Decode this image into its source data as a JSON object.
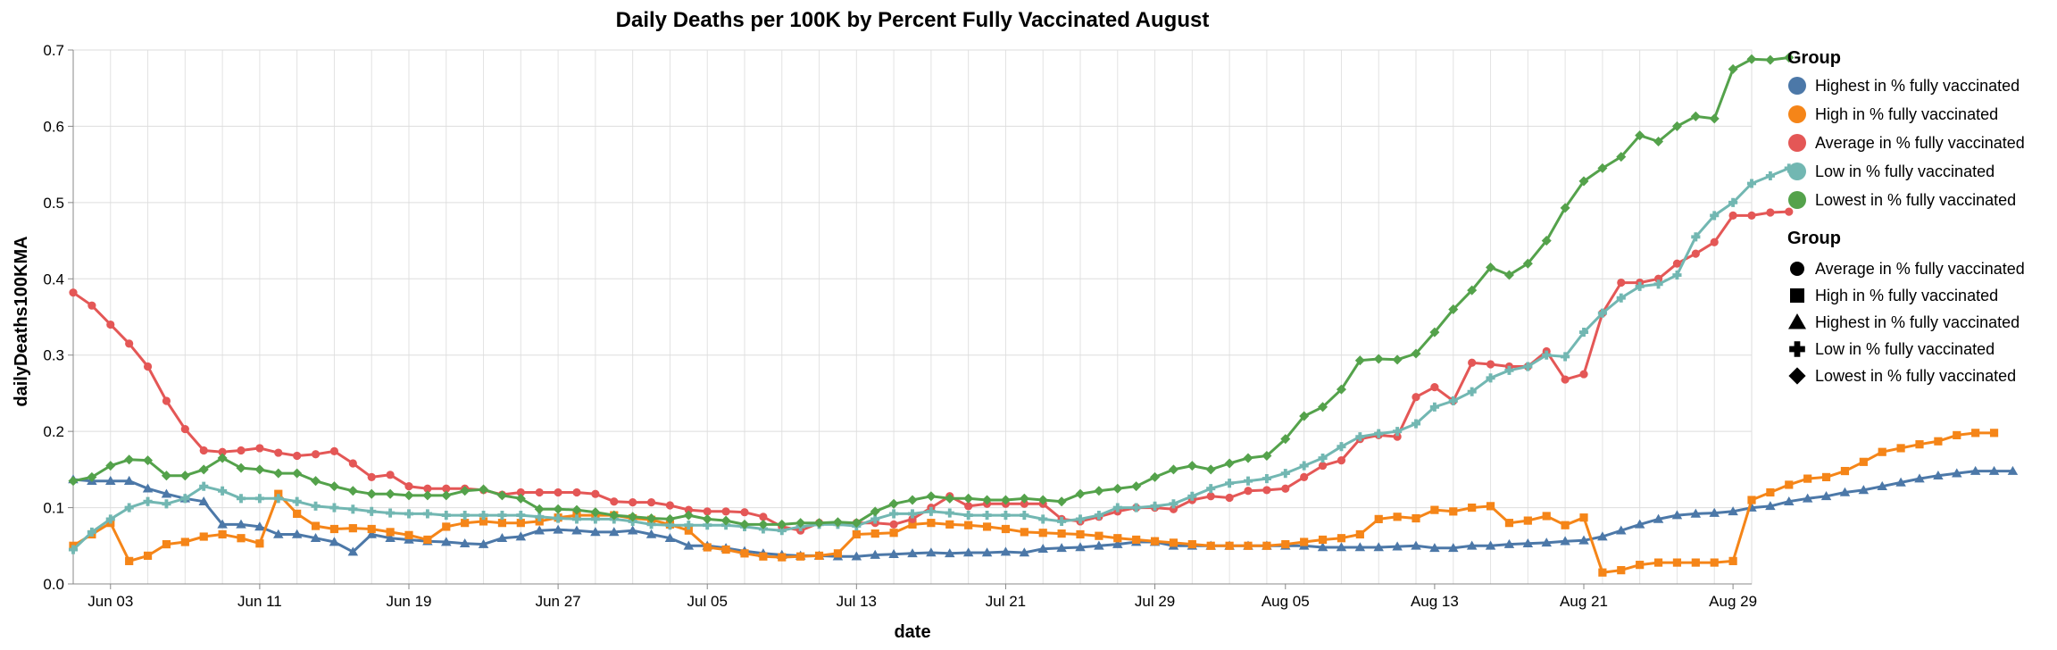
{
  "chart_data": {
    "type": "line",
    "title": "Daily Deaths per 100K by Percent Fully Vaccinated August",
    "xlabel": "date",
    "ylabel": "dailyDeaths100KMA",
    "ylim": [
      0,
      0.7
    ],
    "yticks": [
      "0.0",
      "0.1",
      "0.2",
      "0.3",
      "0.4",
      "0.5",
      "0.6",
      "0.7"
    ],
    "xticks": [
      {
        "date": "2021-06-03",
        "label": "Jun 03"
      },
      {
        "date": "2021-06-11",
        "label": "Jun 11"
      },
      {
        "date": "2021-06-19",
        "label": "Jun 19"
      },
      {
        "date": "2021-06-27",
        "label": "Jun 27"
      },
      {
        "date": "2021-07-05",
        "label": "Jul 05"
      },
      {
        "date": "2021-07-13",
        "label": "Jul 13"
      },
      {
        "date": "2021-07-21",
        "label": "Jul 21"
      },
      {
        "date": "2021-07-29",
        "label": "Jul 29"
      },
      {
        "date": "2021-08-05",
        "label": "Aug 05"
      },
      {
        "date": "2021-08-13",
        "label": "Aug 13"
      },
      {
        "date": "2021-08-21",
        "label": "Aug 21"
      },
      {
        "date": "2021-08-29",
        "label": "Aug 29"
      }
    ],
    "grid": true,
    "legend_position": "right",
    "x_start": "2021-06-01",
    "x_end": "2021-08-30",
    "color_legend": {
      "title": "Group",
      "items": [
        {
          "label": "Highest in % fully vaccinated",
          "color": "#4c78a8"
        },
        {
          "label": "High in % fully vaccinated",
          "color": "#f58518"
        },
        {
          "label": "Average in % fully vaccinated",
          "color": "#e45756"
        },
        {
          "label": "Low in % fully vaccinated",
          "color": "#72b7b2"
        },
        {
          "label": "Lowest in % fully vaccinated",
          "color": "#54a24b"
        }
      ]
    },
    "shape_legend": {
      "title": "Group",
      "items": [
        {
          "label": "Average in % fully vaccinated",
          "shape": "circle"
        },
        {
          "label": "High in % fully vaccinated",
          "shape": "square"
        },
        {
          "label": "Highest in % fully vaccinated",
          "shape": "triangle-up"
        },
        {
          "label": "Low in % fully vaccinated",
          "shape": "cross"
        },
        {
          "label": "Lowest in % fully vaccinated",
          "shape": "diamond"
        }
      ]
    },
    "series": [
      {
        "name": "Highest in % fully vaccinated",
        "color": "#4c78a8",
        "shape": "triangle-up",
        "values": [
          0.137,
          0.135,
          0.135,
          0.135,
          0.125,
          0.118,
          0.112,
          0.108,
          0.078,
          0.078,
          0.075,
          0.065,
          0.065,
          0.06,
          0.055,
          0.042,
          0.065,
          0.06,
          0.058,
          0.056,
          0.055,
          0.053,
          0.052,
          0.06,
          0.062,
          0.07,
          0.071,
          0.07,
          0.068,
          0.068,
          0.07,
          0.065,
          0.06,
          0.05,
          0.05,
          0.047,
          0.043,
          0.04,
          0.038,
          0.037,
          0.037,
          0.036,
          0.036,
          0.038,
          0.039,
          0.04,
          0.041,
          0.04,
          0.041,
          0.041,
          0.042,
          0.041,
          0.046,
          0.047,
          0.048,
          0.05,
          0.052,
          0.055,
          0.055,
          0.05,
          0.05,
          0.05,
          0.05,
          0.05,
          0.05,
          0.05,
          0.05,
          0.048,
          0.048,
          0.048,
          0.048,
          0.049,
          0.05,
          0.047,
          0.047,
          0.05,
          0.05,
          0.052,
          0.053,
          0.054,
          0.056,
          0.057,
          0.062,
          0.07,
          0.078,
          0.085,
          0.09,
          0.092,
          0.093,
          0.095,
          0.1,
          0.102,
          0.108,
          0.112,
          0.115,
          0.12,
          0.123,
          0.128,
          0.133,
          0.138,
          0.142,
          0.145,
          0.148,
          0.148,
          0.148
        ]
      },
      {
        "name": "High in % fully vaccinated",
        "color": "#f58518",
        "shape": "square",
        "values": [
          0.05,
          0.065,
          0.08,
          0.03,
          0.037,
          0.052,
          0.055,
          0.062,
          0.065,
          0.06,
          0.053,
          0.118,
          0.092,
          0.076,
          0.072,
          0.073,
          0.072,
          0.068,
          0.064,
          0.058,
          0.075,
          0.08,
          0.082,
          0.08,
          0.08,
          0.082,
          0.087,
          0.09,
          0.09,
          0.09,
          0.086,
          0.084,
          0.078,
          0.07,
          0.048,
          0.045,
          0.04,
          0.036,
          0.035,
          0.036,
          0.037,
          0.04,
          0.065,
          0.066,
          0.067,
          0.078,
          0.08,
          0.078,
          0.077,
          0.075,
          0.072,
          0.068,
          0.067,
          0.066,
          0.065,
          0.063,
          0.06,
          0.058,
          0.056,
          0.054,
          0.052,
          0.05,
          0.05,
          0.05,
          0.05,
          0.052,
          0.055,
          0.058,
          0.06,
          0.065,
          0.085,
          0.088,
          0.086,
          0.097,
          0.095,
          0.1,
          0.102,
          0.08,
          0.083,
          0.089,
          0.077,
          0.087,
          0.015,
          0.018,
          0.025,
          0.028,
          0.028,
          0.028,
          0.028,
          0.03,
          0.11,
          0.12,
          0.13,
          0.138,
          0.14,
          0.148,
          0.16,
          0.173,
          0.178,
          0.183,
          0.187,
          0.195,
          0.198,
          0.198
        ]
      },
      {
        "name": "Average in % fully vaccinated",
        "color": "#e45756",
        "shape": "circle",
        "values": [
          0.382,
          0.365,
          0.34,
          0.315,
          0.285,
          0.24,
          0.203,
          0.175,
          0.173,
          0.175,
          0.178,
          0.172,
          0.168,
          0.17,
          0.174,
          0.158,
          0.14,
          0.143,
          0.128,
          0.125,
          0.125,
          0.125,
          0.123,
          0.117,
          0.12,
          0.12,
          0.12,
          0.12,
          0.118,
          0.108,
          0.107,
          0.107,
          0.103,
          0.097,
          0.095,
          0.095,
          0.094,
          0.088,
          0.075,
          0.07,
          0.08,
          0.08,
          0.08,
          0.08,
          0.078,
          0.085,
          0.1,
          0.115,
          0.102,
          0.105,
          0.105,
          0.105,
          0.105,
          0.085,
          0.082,
          0.088,
          0.095,
          0.1,
          0.1,
          0.098,
          0.11,
          0.115,
          0.113,
          0.122,
          0.123,
          0.125,
          0.14,
          0.155,
          0.162,
          0.19,
          0.195,
          0.193,
          0.245,
          0.258,
          0.24,
          0.29,
          0.288,
          0.285,
          0.285,
          0.305,
          0.268,
          0.275,
          0.355,
          0.395,
          0.395,
          0.4,
          0.42,
          0.433,
          0.448,
          0.483,
          0.483,
          0.487,
          0.488
        ]
      },
      {
        "name": "Low in % fully vaccinated",
        "color": "#72b7b2",
        "shape": "cross",
        "values": [
          0.045,
          0.068,
          0.085,
          0.1,
          0.108,
          0.105,
          0.112,
          0.128,
          0.122,
          0.112,
          0.112,
          0.112,
          0.108,
          0.102,
          0.1,
          0.098,
          0.095,
          0.093,
          0.092,
          0.092,
          0.09,
          0.09,
          0.09,
          0.09,
          0.09,
          0.088,
          0.086,
          0.085,
          0.085,
          0.085,
          0.082,
          0.078,
          0.077,
          0.077,
          0.077,
          0.077,
          0.075,
          0.072,
          0.07,
          0.075,
          0.078,
          0.078,
          0.076,
          0.085,
          0.092,
          0.092,
          0.095,
          0.093,
          0.09,
          0.09,
          0.09,
          0.09,
          0.085,
          0.082,
          0.085,
          0.09,
          0.1,
          0.1,
          0.102,
          0.105,
          0.115,
          0.125,
          0.132,
          0.135,
          0.138,
          0.145,
          0.155,
          0.165,
          0.18,
          0.193,
          0.197,
          0.2,
          0.21,
          0.232,
          0.24,
          0.252,
          0.27,
          0.28,
          0.285,
          0.3,
          0.298,
          0.33,
          0.355,
          0.375,
          0.39,
          0.393,
          0.405,
          0.455,
          0.483,
          0.5,
          0.525,
          0.535,
          0.545
        ]
      },
      {
        "name": "Lowest in % fully vaccinated",
        "color": "#54a24b",
        "shape": "diamond",
        "values": [
          0.135,
          0.14,
          0.155,
          0.163,
          0.162,
          0.142,
          0.142,
          0.15,
          0.165,
          0.152,
          0.15,
          0.145,
          0.145,
          0.135,
          0.128,
          0.122,
          0.118,
          0.118,
          0.116,
          0.116,
          0.116,
          0.122,
          0.124,
          0.116,
          0.112,
          0.098,
          0.098,
          0.097,
          0.094,
          0.09,
          0.088,
          0.086,
          0.085,
          0.09,
          0.085,
          0.083,
          0.078,
          0.078,
          0.078,
          0.08,
          0.08,
          0.081,
          0.08,
          0.095,
          0.105,
          0.11,
          0.115,
          0.112,
          0.112,
          0.11,
          0.11,
          0.112,
          0.11,
          0.108,
          0.118,
          0.122,
          0.125,
          0.128,
          0.14,
          0.15,
          0.155,
          0.15,
          0.158,
          0.165,
          0.168,
          0.19,
          0.22,
          0.232,
          0.255,
          0.293,
          0.295,
          0.294,
          0.302,
          0.33,
          0.36,
          0.385,
          0.415,
          0.405,
          0.42,
          0.45,
          0.493,
          0.528,
          0.545,
          0.56,
          0.588,
          0.58,
          0.6,
          0.613,
          0.61,
          0.675,
          0.688,
          0.687,
          0.69
        ]
      }
    ]
  }
}
